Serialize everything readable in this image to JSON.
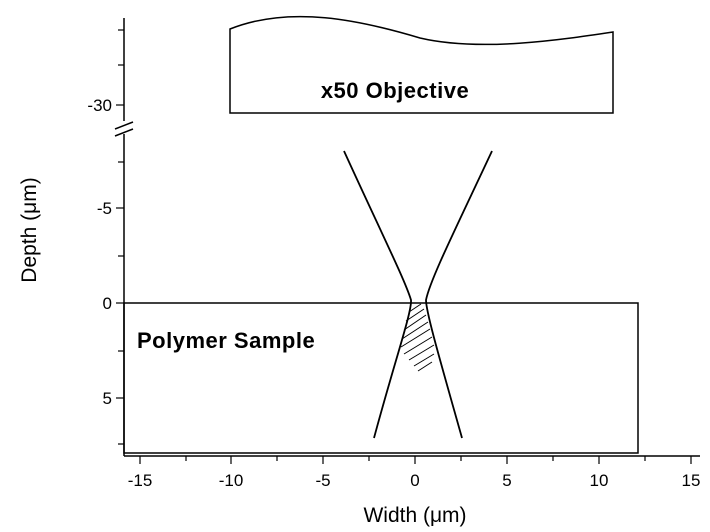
{
  "axes": {
    "xlabel": "Width (μm)",
    "ylabel": "Depth (μm)",
    "x_ticks": [
      "-15",
      "-10",
      "-5",
      "0",
      "5",
      "10",
      "15"
    ],
    "y_ticks_upper": [
      "-30"
    ],
    "y_ticks_lower": [
      "-5",
      "0",
      "5"
    ]
  },
  "annotations": {
    "objective_label": "x50 Objective",
    "sample_label": "Polymer Sample"
  },
  "colors": {
    "line": "#000000",
    "background": "#ffffff"
  }
}
